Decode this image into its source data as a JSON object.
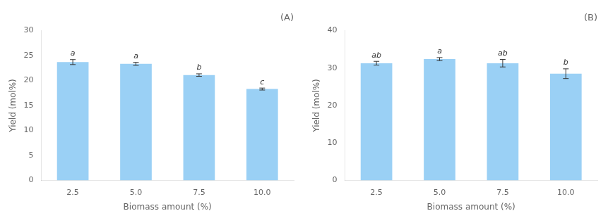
{
  "chart_data": [
    {
      "type": "bar",
      "title": "(A)",
      "categories": [
        "2.5",
        "5.0",
        "7.5",
        "10.0"
      ],
      "values": [
        23.7,
        23.35,
        21.1,
        18.3
      ],
      "errors": [
        0.5,
        0.3,
        0.25,
        0.2
      ],
      "annotations": [
        "a",
        "a",
        "b",
        "c"
      ],
      "xlabel": "Biomass amount (%)",
      "ylabel": "Yield (mol%)",
      "ylim": [
        0,
        30
      ],
      "yticks": [
        0,
        5,
        10,
        15,
        20,
        25,
        30
      ],
      "grid": false
    },
    {
      "type": "bar",
      "title": "(B)",
      "categories": [
        "2.5",
        "5.0",
        "7.5",
        "10.0"
      ],
      "values": [
        31.3,
        32.4,
        31.3,
        28.5
      ],
      "errors": [
        0.5,
        0.4,
        1.0,
        1.3
      ],
      "annotations": [
        "ab",
        "a",
        "ab",
        "b"
      ],
      "xlabel": "Biomass amount (%)",
      "ylabel": "Yield (mol%)",
      "ylim": [
        0,
        40
      ],
      "yticks": [
        0,
        10,
        20,
        30,
        40
      ],
      "grid": false
    }
  ]
}
